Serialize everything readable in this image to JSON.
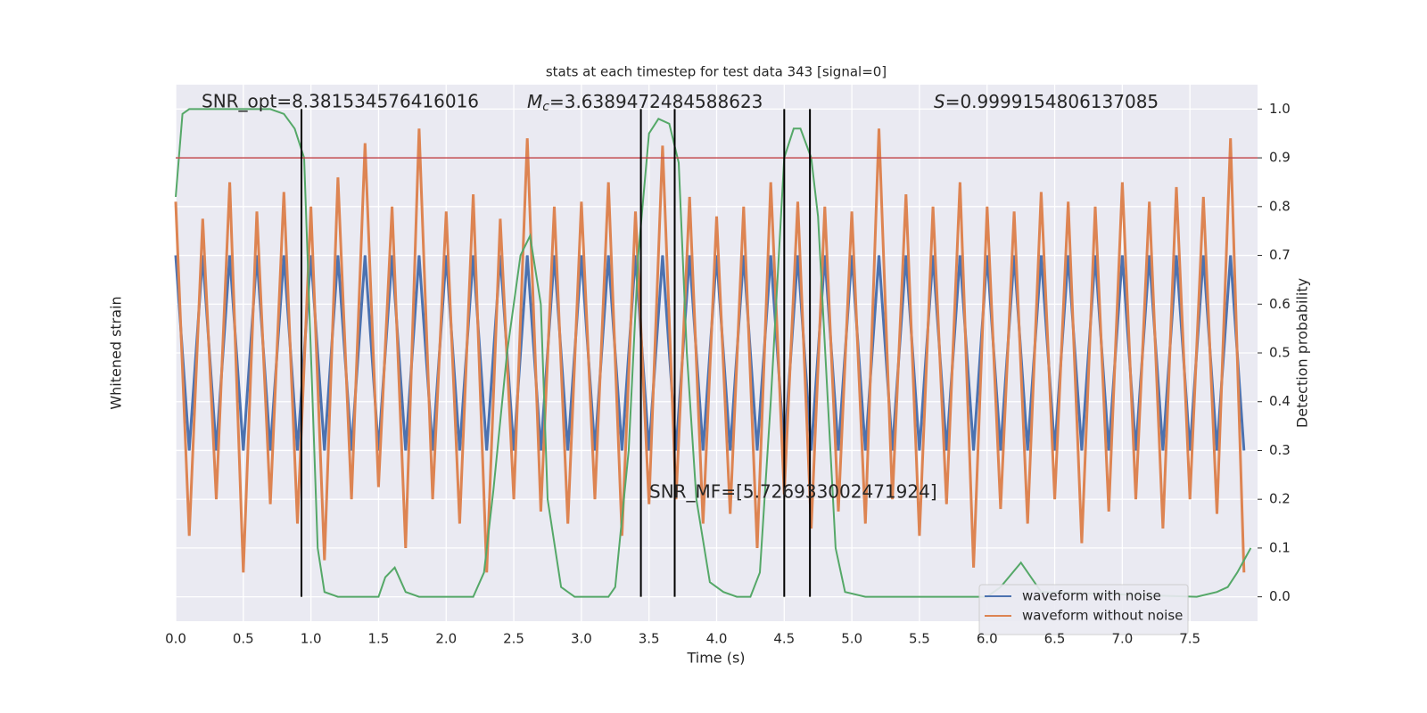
{
  "chart_data": {
    "type": "line",
    "title": "stats at each timestep for test data 343 [signal=0]",
    "xlabel": "Time (s)",
    "ylabel": "Whitened strain",
    "y2label": "Detection probability",
    "xlim": [
      0,
      8
    ],
    "xticks": [
      {
        "value": 0,
        "label": "0.0"
      },
      0.5,
      {
        "value": 1,
        "label": "1.0"
      },
      1.5,
      {
        "value": 2,
        "label": "2.0"
      },
      2.5,
      {
        "value": 3,
        "label": "3.0"
      },
      3.5,
      {
        "value": 4,
        "label": "4.0"
      },
      4.5,
      {
        "value": 5,
        "label": "5.0"
      },
      5.5,
      {
        "value": 6,
        "label": "6.0"
      },
      6.5,
      {
        "value": 7,
        "label": "7.0"
      },
      7.5
    ],
    "ylim": [
      -1.1,
      1.1
    ],
    "y2lim": [
      -0.05,
      1.05
    ],
    "y2ticks": [
      {
        "value": 0,
        "label": "0.0"
      },
      0.1,
      0.2,
      0.3,
      0.4,
      0.5,
      0.6,
      0.7,
      0.8,
      0.9,
      {
        "value": 1,
        "label": "1.0"
      }
    ],
    "grid": true,
    "legend": "lower right",
    "x": [
      0,
      0.1,
      0.2,
      0.3,
      0.4,
      0.5,
      0.6,
      0.7,
      0.8,
      0.9,
      1,
      1.1,
      1.2,
      1.3,
      1.4,
      1.5,
      1.6,
      1.7,
      1.8,
      1.9,
      2,
      2.1,
      2.2,
      2.3,
      2.4,
      2.5,
      2.6,
      2.7,
      2.8,
      2.9,
      3,
      3.1,
      3.2,
      3.3,
      3.4,
      3.5,
      3.6,
      3.7,
      3.8,
      3.9,
      4,
      4.1,
      4.2,
      4.3,
      4.4,
      4.5,
      4.6,
      4.7,
      4.8,
      4.9,
      5,
      5.1,
      5.2,
      5.3,
      5.4,
      5.5,
      5.6,
      5.7,
      5.8,
      5.9,
      6,
      6.1,
      6.2,
      6.3,
      6.4,
      6.5,
      6.6,
      6.7,
      6.8,
      6.9,
      7,
      7.1,
      7.2,
      7.3,
      7.4,
      7.5,
      7.6,
      7.7,
      7.8,
      7.9
    ],
    "series": [
      {
        "name": "waveform with noise",
        "color": "#4c72b0",
        "values": [
          0.4,
          -0.4,
          0.4,
          -0.4,
          0.4,
          -0.4,
          0.4,
          -0.4,
          0.4,
          -0.4,
          0.4,
          -0.4,
          0.4,
          -0.4,
          0.4,
          -0.4,
          0.4,
          -0.4,
          0.4,
          -0.4,
          0.4,
          -0.4,
          0.4,
          -0.4,
          0.4,
          -0.4,
          0.4,
          -0.4,
          0.4,
          -0.4,
          0.4,
          -0.4,
          0.4,
          -0.4,
          0.4,
          -0.4,
          0.4,
          -0.4,
          0.4,
          -0.4,
          0.4,
          -0.4,
          0.4,
          -0.4,
          0.4,
          -0.4,
          0.4,
          -0.4,
          0.4,
          -0.4,
          0.4,
          -0.4,
          0.4,
          -0.4,
          0.4,
          -0.4,
          0.4,
          -0.4,
          0.4,
          -0.4,
          0.4,
          -0.4,
          0.4,
          -0.4,
          0.4,
          -0.4,
          0.4,
          -0.4,
          0.4,
          -0.4,
          0.4,
          -0.4,
          0.4,
          -0.4,
          0.4,
          -0.4,
          0.4,
          -0.4,
          0.4,
          -0.4
        ]
      },
      {
        "name": "waveform without noise",
        "color": "#dd8452",
        "values": [
          0.62,
          -0.75,
          0.55,
          -0.6,
          0.7,
          -0.9,
          0.58,
          -0.62,
          0.66,
          -0.7,
          0.6,
          -0.85,
          0.72,
          -0.6,
          0.86,
          -0.55,
          0.6,
          -0.8,
          0.92,
          -0.6,
          0.58,
          -0.7,
          0.65,
          -0.9,
          0.55,
          -0.6,
          0.88,
          -0.65,
          0.6,
          -0.7,
          0.62,
          -0.6,
          0.7,
          -0.75,
          0.58,
          -0.62,
          0.85,
          -0.6,
          0.64,
          -0.7,
          0.56,
          -0.66,
          0.6,
          -0.8,
          0.7,
          -0.58,
          0.62,
          -0.72,
          0.6,
          -0.65,
          0.58,
          -0.7,
          0.92,
          -0.6,
          0.65,
          -0.75,
          0.6,
          -0.62,
          0.7,
          -0.88,
          0.6,
          -0.64,
          0.58,
          -0.7,
          0.66,
          -0.6,
          0.62,
          -0.78,
          0.6,
          -0.65,
          0.7,
          -0.6,
          0.62,
          -0.72,
          0.68,
          -0.6,
          0.64,
          -0.66,
          0.88,
          -0.9
        ]
      },
      {
        "color": "#55a868",
        "axis": "y2",
        "x": [
          0,
          0.05,
          0.1,
          0.3,
          0.5,
          0.7,
          0.8,
          0.88,
          0.95,
          1.05,
          1.1,
          1.2,
          1.5,
          1.55,
          1.62,
          1.7,
          1.8,
          2.2,
          2.28,
          2.35,
          2.45,
          2.55,
          2.62,
          2.7,
          2.75,
          2.85,
          2.95,
          3.2,
          3.25,
          3.35,
          3.42,
          3.5,
          3.57,
          3.65,
          3.72,
          3.78,
          3.85,
          3.95,
          4.05,
          4.15,
          4.25,
          4.32,
          4.4,
          4.5,
          4.57,
          4.62,
          4.7,
          4.75,
          4.88,
          4.95,
          5.1,
          6.0,
          6.1,
          6.25,
          6.4,
          7.55,
          7.7,
          7.78,
          7.85,
          7.95
        ],
        "values": [
          0.82,
          0.99,
          1.0,
          1.0,
          1.0,
          1.0,
          0.99,
          0.96,
          0.9,
          0.1,
          0.01,
          0.0,
          0.0,
          0.04,
          0.06,
          0.01,
          0.0,
          0.0,
          0.05,
          0.22,
          0.5,
          0.7,
          0.74,
          0.6,
          0.2,
          0.02,
          0.0,
          0.0,
          0.02,
          0.3,
          0.7,
          0.95,
          0.98,
          0.97,
          0.89,
          0.5,
          0.2,
          0.03,
          0.01,
          0.0,
          0.0,
          0.05,
          0.4,
          0.9,
          0.96,
          0.96,
          0.9,
          0.78,
          0.1,
          0.01,
          0.0,
          0.0,
          0.02,
          0.07,
          0.01,
          0.0,
          0.01,
          0.02,
          0.05,
          0.1
        ]
      }
    ],
    "threshold": {
      "value": 0.9,
      "color": "#c44e52"
    },
    "vlines": {
      "color": "#000000",
      "x": [
        0.93,
        3.44,
        3.69,
        4.5,
        4.69
      ]
    },
    "annotations": [
      {
        "text": "SNR_opt=8.381534576416016"
      },
      {
        "symbol": "M",
        "subscript": "c",
        "text": "=3.6389472484588623"
      },
      {
        "symbol": "S",
        "text": "=0.9999154806137085"
      },
      {
        "text": "SNR_MF=[5.726933002471924]"
      }
    ]
  }
}
